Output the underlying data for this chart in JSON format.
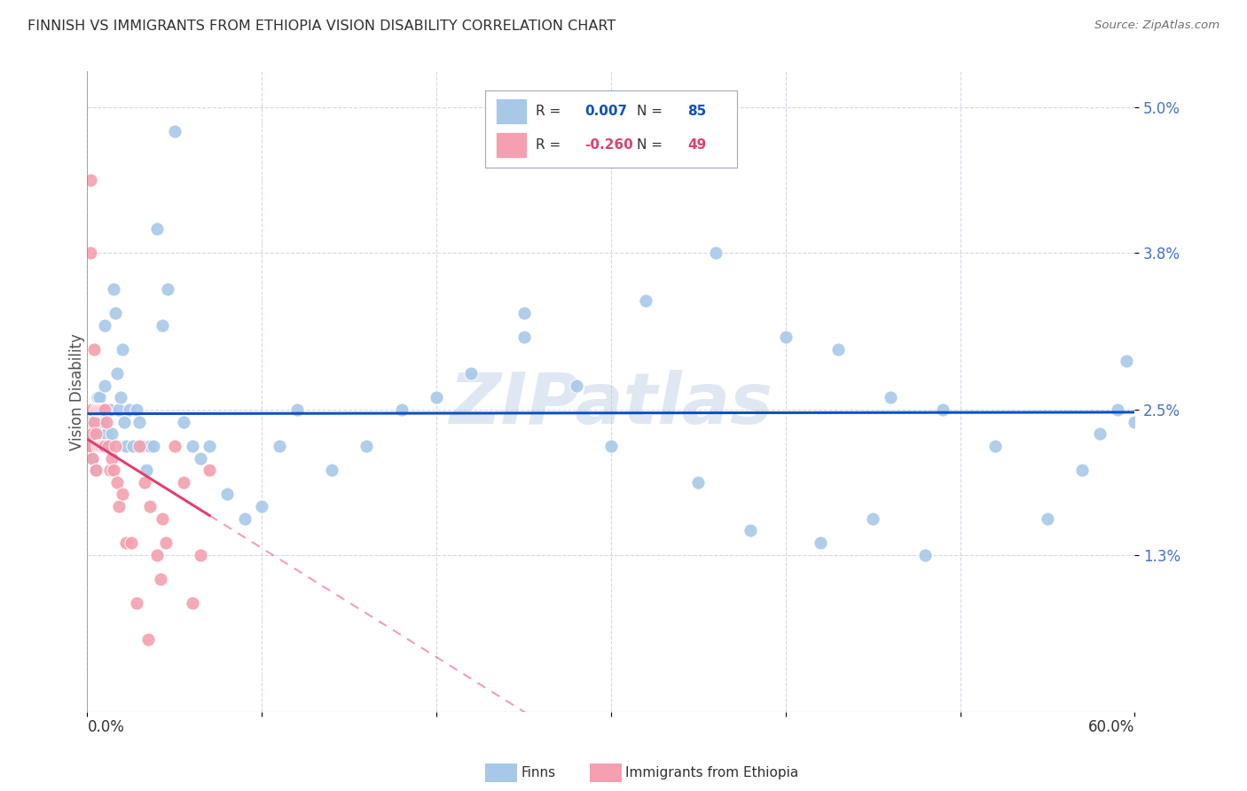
{
  "title": "FINNISH VS IMMIGRANTS FROM ETHIOPIA VISION DISABILITY CORRELATION CHART",
  "source": "Source: ZipAtlas.com",
  "ylabel": "Vision Disability",
  "watermark": "ZIPatlas",
  "finns_color": "#a8c8e8",
  "ethiopia_color": "#f4a0b0",
  "finns_R": 0.007,
  "ethiopia_R": -0.26,
  "finns_N": 85,
  "ethiopia_N": 49,
  "xlim": [
    0.0,
    0.6
  ],
  "ylim": [
    0.0,
    0.053
  ],
  "ytick_vals": [
    0.013,
    0.025,
    0.038,
    0.05
  ],
  "ytick_labels": [
    "1.3%",
    "2.5%",
    "3.8%",
    "5.0%"
  ],
  "finns_line_color": "#1050c0",
  "ethiopia_line_color": "#e04070",
  "legend_box_color": "#e8e8f8",
  "legend_R1_color": "#1050c0",
  "legend_N1_color": "#1050c0",
  "legend_R2_color": "#e04070",
  "legend_N2_color": "#e04070",
  "tick_color": "#4472c4",
  "title_color": "#303030",
  "source_color": "#707070",
  "grid_color": "#d0d8e8",
  "background_color": "#ffffff",
  "finns_x": [
    0.001,
    0.002,
    0.002,
    0.003,
    0.003,
    0.003,
    0.004,
    0.004,
    0.004,
    0.005,
    0.005,
    0.005,
    0.005,
    0.006,
    0.006,
    0.006,
    0.007,
    0.007,
    0.008,
    0.008,
    0.009,
    0.009,
    0.01,
    0.01,
    0.011,
    0.011,
    0.012,
    0.013,
    0.014,
    0.015,
    0.016,
    0.017,
    0.018,
    0.019,
    0.02,
    0.021,
    0.022,
    0.024,
    0.026,
    0.028,
    0.03,
    0.032,
    0.034,
    0.036,
    0.038,
    0.04,
    0.043,
    0.046,
    0.05,
    0.055,
    0.06,
    0.065,
    0.07,
    0.08,
    0.09,
    0.1,
    0.11,
    0.12,
    0.14,
    0.16,
    0.18,
    0.2,
    0.22,
    0.25,
    0.28,
    0.32,
    0.36,
    0.4,
    0.43,
    0.46,
    0.49,
    0.52,
    0.55,
    0.57,
    0.58,
    0.59,
    0.595,
    0.6,
    0.25,
    0.3,
    0.35,
    0.38,
    0.42,
    0.45,
    0.48
  ],
  "finns_y": [
    0.024,
    0.025,
    0.022,
    0.025,
    0.023,
    0.021,
    0.025,
    0.023,
    0.022,
    0.025,
    0.024,
    0.022,
    0.02,
    0.026,
    0.025,
    0.023,
    0.026,
    0.024,
    0.025,
    0.022,
    0.025,
    0.024,
    0.032,
    0.027,
    0.023,
    0.022,
    0.025,
    0.025,
    0.023,
    0.035,
    0.033,
    0.028,
    0.025,
    0.026,
    0.03,
    0.024,
    0.022,
    0.025,
    0.022,
    0.025,
    0.024,
    0.022,
    0.02,
    0.022,
    0.022,
    0.04,
    0.032,
    0.035,
    0.048,
    0.024,
    0.022,
    0.021,
    0.022,
    0.018,
    0.016,
    0.017,
    0.022,
    0.025,
    0.02,
    0.022,
    0.025,
    0.026,
    0.028,
    0.031,
    0.027,
    0.034,
    0.038,
    0.031,
    0.03,
    0.026,
    0.025,
    0.022,
    0.016,
    0.02,
    0.023,
    0.025,
    0.029,
    0.024,
    0.033,
    0.022,
    0.019,
    0.015,
    0.014,
    0.016,
    0.013
  ],
  "ethiopia_x": [
    0.001,
    0.001,
    0.001,
    0.002,
    0.002,
    0.002,
    0.003,
    0.003,
    0.003,
    0.004,
    0.004,
    0.005,
    0.005,
    0.005,
    0.006,
    0.006,
    0.007,
    0.007,
    0.008,
    0.008,
    0.009,
    0.009,
    0.01,
    0.01,
    0.011,
    0.012,
    0.013,
    0.014,
    0.015,
    0.016,
    0.017,
    0.018,
    0.02,
    0.022,
    0.025,
    0.028,
    0.03,
    0.033,
    0.036,
    0.04,
    0.043,
    0.045,
    0.05,
    0.055,
    0.06,
    0.065,
    0.07,
    0.035,
    0.042
  ],
  "ethiopia_y": [
    0.025,
    0.023,
    0.022,
    0.044,
    0.038,
    0.022,
    0.025,
    0.023,
    0.021,
    0.03,
    0.024,
    0.025,
    0.023,
    0.02,
    0.025,
    0.022,
    0.025,
    0.022,
    0.025,
    0.022,
    0.025,
    0.022,
    0.025,
    0.022,
    0.024,
    0.022,
    0.02,
    0.021,
    0.02,
    0.022,
    0.019,
    0.017,
    0.018,
    0.014,
    0.014,
    0.009,
    0.022,
    0.019,
    0.017,
    0.013,
    0.016,
    0.014,
    0.022,
    0.019,
    0.009,
    0.013,
    0.02,
    0.006,
    0.011
  ]
}
